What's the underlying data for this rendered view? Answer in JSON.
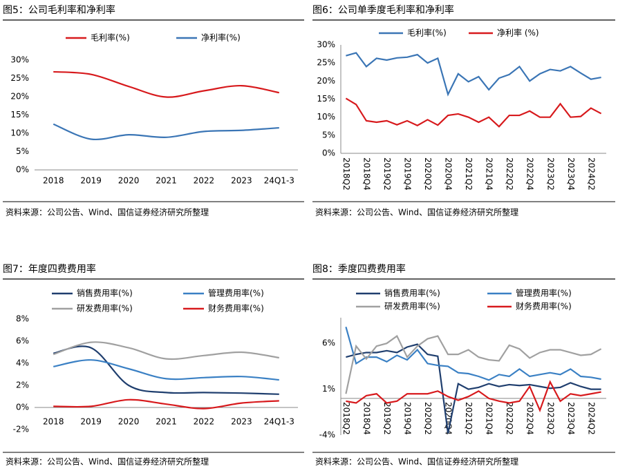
{
  "chart_data": [
    {
      "type": "line",
      "title": "图5：公司毛利率和净利率",
      "source": "资料来源：公司公告、Wind、国信证券经济研究所整理",
      "smooth": true,
      "categories": [
        "2018",
        "2019",
        "2020",
        "2021",
        "2022",
        "2023",
        "24Q1-3"
      ],
      "series": [
        {
          "name": "毛利率(%)",
          "color": "#d7191c",
          "values": [
            26.8,
            26.1,
            22.8,
            19.9,
            21.6,
            23.0,
            21.1
          ]
        },
        {
          "name": "净利率(%)",
          "color": "#3a75b5",
          "values": [
            12.5,
            8.4,
            9.6,
            8.9,
            10.5,
            10.8,
            11.5
          ]
        }
      ],
      "ylim": [
        0,
        30
      ],
      "yticks": [
        {
          "value": 0,
          "label": "0%"
        },
        {
          "value": 5,
          "label": "5%"
        },
        {
          "value": 10,
          "label": "10%"
        },
        {
          "value": 15,
          "label": "15%"
        },
        {
          "value": 20,
          "label": "20%"
        },
        {
          "value": 25,
          "label": "25%"
        },
        {
          "value": 30,
          "label": "30%"
        }
      ]
    },
    {
      "type": "line",
      "title": "图6：公司单季度毛利率和净利率",
      "source": "资料来源：公司公告、Wind、国信证券经济研究所整理",
      "smooth": false,
      "categories": [
        "2018Q2",
        null,
        "2018Q4",
        null,
        "2019Q2",
        null,
        "2019Q4",
        null,
        "2020Q2",
        null,
        "2020Q4",
        null,
        "2021Q2",
        null,
        "2021Q4",
        null,
        "2022Q2",
        null,
        "2022Q4",
        null,
        "2023Q2",
        null,
        "2023Q4",
        null,
        "2024Q2",
        null
      ],
      "series": [
        {
          "name": "毛利率(%)",
          "color": "#3a75b5",
          "values": [
            27.0,
            27.8,
            24.0,
            26.3,
            25.8,
            26.4,
            26.6,
            27.3,
            25.0,
            26.3,
            16.3,
            22.0,
            19.8,
            21.2,
            17.6,
            20.8,
            21.8,
            24.0,
            20.0,
            22.0,
            23.2,
            22.8,
            24.0,
            22.2,
            20.5,
            21.0
          ]
        },
        {
          "name": "净利率 (%)",
          "color": "#d7191c",
          "values": [
            15.2,
            13.5,
            9.0,
            8.6,
            9.0,
            7.9,
            9.0,
            7.7,
            9.3,
            7.8,
            10.5,
            10.9,
            10.0,
            8.6,
            10.0,
            7.4,
            10.5,
            10.5,
            11.7,
            10.0,
            10.0,
            13.7,
            10.0,
            10.2,
            12.5,
            11.0
          ]
        }
      ],
      "ylim": [
        0,
        30
      ],
      "yticks": [
        {
          "value": 0,
          "label": "0%"
        },
        {
          "value": 5,
          "label": "5%"
        },
        {
          "value": 10,
          "label": "10%"
        },
        {
          "value": 15,
          "label": "15%"
        },
        {
          "value": 20,
          "label": "20%"
        },
        {
          "value": 25,
          "label": "25%"
        },
        {
          "value": 30,
          "label": "30%"
        }
      ]
    },
    {
      "type": "line",
      "title": "图7：年度四费费用率",
      "source": "资料来源：公司公告、Wind、国信证券经济研究所整理",
      "smooth": true,
      "categories": [
        "2018",
        "2019",
        "2020",
        "2021",
        "2022",
        "2023",
        "24Q1-3"
      ],
      "series": [
        {
          "name": "销售费用率(%)",
          "color": "#1f3e6e",
          "values": [
            4.9,
            5.4,
            2.0,
            1.35,
            1.35,
            1.3,
            1.2
          ]
        },
        {
          "name": "管理费用率(%)",
          "color": "#3a80c4",
          "values": [
            3.7,
            4.3,
            3.5,
            2.6,
            2.7,
            2.8,
            2.5
          ]
        },
        {
          "name": "研发费用率(%)",
          "color": "#a0a0a0",
          "values": [
            4.8,
            5.9,
            5.4,
            4.4,
            4.7,
            5.0,
            4.5
          ]
        },
        {
          "name": "财务费用率(%)",
          "color": "#d7191c",
          "values": [
            0.1,
            0.1,
            0.7,
            0.3,
            -0.1,
            0.4,
            0.6
          ]
        }
      ],
      "ylim": [
        -2,
        8
      ],
      "yticks": [
        {
          "value": -2,
          "label": "-2%"
        },
        {
          "value": 0,
          "label": "0%"
        },
        {
          "value": 2,
          "label": "2%"
        },
        {
          "value": 4,
          "label": "4%"
        },
        {
          "value": 6,
          "label": "6%"
        },
        {
          "value": 8,
          "label": "8%"
        }
      ]
    },
    {
      "type": "line",
      "title": "图8：季度四费费用率",
      "source": "资料来源：公司公告、Wind、国信证券经济研究所整理",
      "smooth": false,
      "categories": [
        "2018Q2",
        null,
        "2018Q4",
        null,
        "2019Q2",
        null,
        "2019Q4",
        null,
        "2020Q2",
        null,
        "2020Q4",
        null,
        "2021Q2",
        null,
        "2021Q4",
        null,
        "2022Q2",
        null,
        "2022Q4",
        null,
        "2023Q2",
        null,
        "2023Q4",
        null,
        "2024Q2",
        null
      ],
      "series": [
        {
          "name": "销售费用率(%)",
          "color": "#1f3e6e",
          "values": [
            4.5,
            4.8,
            5.0,
            5.0,
            5.2,
            5.0,
            5.6,
            5.9,
            4.8,
            4.6,
            -3.8,
            1.6,
            1.0,
            1.2,
            1.6,
            1.3,
            1.5,
            1.4,
            1.5,
            1.3,
            1.1,
            1.2,
            1.7,
            1.3,
            1.0,
            1.0
          ]
        },
        {
          "name": "管理费用率(%)",
          "color": "#3a80c4",
          "values": [
            7.8,
            3.8,
            4.5,
            4.5,
            4.0,
            4.7,
            4.2,
            5.3,
            3.8,
            3.6,
            3.5,
            2.8,
            2.7,
            2.4,
            2.0,
            2.6,
            2.4,
            3.2,
            2.4,
            2.6,
            2.8,
            2.6,
            3.2,
            2.4,
            2.3,
            2.1
          ]
        },
        {
          "name": "研发费用率(%)",
          "color": "#a0a0a0",
          "values": [
            0.5,
            5.7,
            4.3,
            5.7,
            6.0,
            6.8,
            4.5,
            5.7,
            6.5,
            6.8,
            4.8,
            4.8,
            5.3,
            4.5,
            4.2,
            4.1,
            5.8,
            5.4,
            4.4,
            5.0,
            5.3,
            5.3,
            5.0,
            4.7,
            4.8,
            5.4
          ]
        },
        {
          "name": "财务费用率(%)",
          "color": "#d7191c",
          "values": [
            -0.3,
            -0.5,
            0.3,
            0.5,
            -0.5,
            -0.3,
            0.5,
            0.5,
            0.5,
            0.8,
            0.2,
            -0.2,
            0.2,
            0.8,
            0.0,
            -0.3,
            -0.5,
            -0.3,
            1.3,
            -1.3,
            1.8,
            -0.3,
            0.5,
            0.3,
            0.5,
            0.7
          ]
        }
      ],
      "ylim": [
        -4,
        8.8
      ],
      "yticks": [
        {
          "value": -4,
          "label": "-4%"
        },
        {
          "value": 1,
          "label": "1%"
        },
        {
          "value": 6,
          "label": "6%"
        }
      ]
    }
  ]
}
